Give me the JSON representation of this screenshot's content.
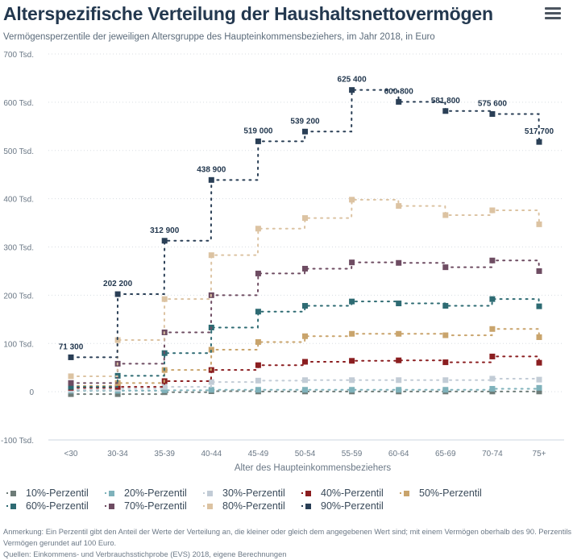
{
  "header": {
    "title": "Alterspezifische Verteilung der Haushaltsnettovermögen",
    "subtitle": "Vermögensperzentile der jeweiligen Altersgruppe des Haupteinkommensbeziehers, im Jahr 2018, in Euro",
    "menu_icon": "hamburger-menu-icon"
  },
  "chart_data": {
    "type": "line",
    "step": "left",
    "title": "Alterspezifische Verteilung der Haushaltsnettovermögen",
    "subtitle": "Vermögensperzentile der jeweiligen Altersgruppe des Haupteinkommensbeziehers, im Jahr 2018, in Euro",
    "xlabel": "Alter des Haupteinkommensbeziehers",
    "ylabel": "",
    "categories": [
      "<30",
      "30-34",
      "35-39",
      "40-44",
      "45-49",
      "50-54",
      "55-59",
      "60-64",
      "65-69",
      "70-74",
      "75+"
    ],
    "ylim": [
      -100000,
      700000
    ],
    "yticks": [
      -100000,
      0,
      100000,
      200000,
      300000,
      400000,
      500000,
      600000,
      700000
    ],
    "ytick_labels": [
      "-100 Tsd.",
      "0",
      "100 Tsd.",
      "200 Tsd.",
      "300 Tsd.",
      "400 Tsd.",
      "500 Tsd.",
      "600 Tsd.",
      "700 Tsd."
    ],
    "grid": true,
    "legend_position": "bottom",
    "series": [
      {
        "name": "10%-Perzentil",
        "color": "#6e7c78",
        "values": [
          -5000,
          -5000,
          -1000,
          1000,
          500,
          500,
          500,
          500,
          500,
          500,
          500
        ]
      },
      {
        "name": "20%-Perzentil",
        "color": "#7fb2bb",
        "values": [
          2000,
          2000,
          3000,
          4000,
          4000,
          4000,
          4000,
          4000,
          4000,
          6000,
          8000
        ]
      },
      {
        "name": "30%-Perzentil",
        "color": "#c2ccd6",
        "values": [
          4000,
          6000,
          10000,
          20000,
          23000,
          24000,
          24000,
          24000,
          24000,
          27000,
          25000
        ]
      },
      {
        "name": "40%-Perzentil",
        "color": "#8b1e20",
        "values": [
          8000,
          10000,
          22000,
          45000,
          55000,
          62000,
          64000,
          65000,
          61000,
          73000,
          60000
        ]
      },
      {
        "name": "50%-Perzentil",
        "color": "#c9a46c",
        "values": [
          12000,
          18000,
          45000,
          87000,
          103000,
          115000,
          120000,
          120000,
          117000,
          130000,
          113000
        ]
      },
      {
        "name": "60%-Perzentil",
        "color": "#2e6b73",
        "values": [
          10000,
          33000,
          80000,
          133000,
          166000,
          178000,
          187000,
          183000,
          178000,
          192000,
          177000
        ]
      },
      {
        "name": "70%-Perzentil",
        "color": "#6e4c62",
        "values": [
          18000,
          58000,
          123000,
          200000,
          245000,
          255000,
          268000,
          267000,
          258000,
          272000,
          250000
        ]
      },
      {
        "name": "80%-Perzentil",
        "color": "#dcc3a2",
        "values": [
          32000,
          107000,
          192000,
          283000,
          338000,
          360000,
          398000,
          385000,
          366000,
          376000,
          347000
        ]
      },
      {
        "name": "90%-Perzentil",
        "color": "#2a3f56",
        "values": [
          71300,
          202200,
          312900,
          438900,
          519000,
          539200,
          625400,
          600800,
          581800,
          575600,
          517700
        ],
        "data_labels": [
          "71 300",
          "202 200",
          "312 900",
          "438 900",
          "519 000",
          "539 200",
          "625 400",
          "600 800",
          "581 800",
          "575 600",
          "517 700"
        ]
      }
    ]
  },
  "legend": {
    "rows": [
      [
        {
          "label": "10%-Perzentil",
          "color": "#6e7c78"
        },
        {
          "label": "20%-Perzentil",
          "color": "#7fb2bb"
        },
        {
          "label": "30%-Perzentil",
          "color": "#c2ccd6"
        },
        {
          "label": "40%-Perzentil",
          "color": "#8b1e20"
        },
        {
          "label": "50%-Perzentil",
          "color": "#c9a46c"
        }
      ],
      [
        {
          "label": "60%-Perzentil",
          "color": "#2e6b73"
        },
        {
          "label": "70%-Perzentil",
          "color": "#6e4c62"
        },
        {
          "label": "80%-Perzentil",
          "color": "#dcc3a2"
        },
        {
          "label": "90%-Perzentil",
          "color": "#2a3f56"
        }
      ]
    ]
  },
  "footer": {
    "note_line1": "Anmerkung: Ein Perzentil gibt den Anteil der Werte der Verteilung an, die kleiner oder gleich dem angegebenen Wert sind; mit einem Vermögen oberhalb des 90. Perzentils",
    "note_line2": "Vermögen gerundet auf 100 Euro.",
    "sources": "Quellen: Einkommens- und Verbrauchsstichprobe (EVS) 2018, eigene Berechnungen"
  }
}
